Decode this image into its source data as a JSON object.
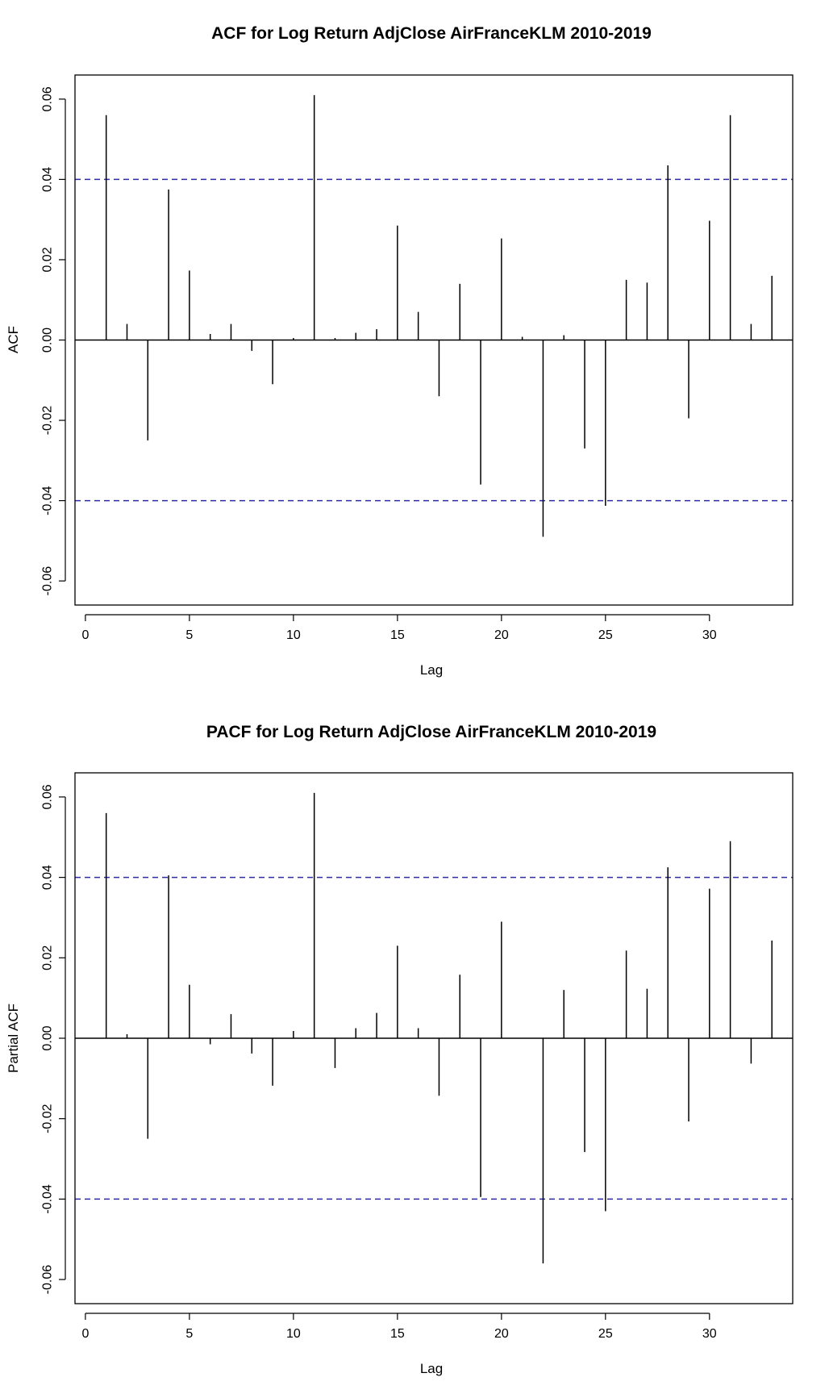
{
  "chart_data": [
    {
      "type": "bar",
      "title": "ACF for Log Return AdjClose AirFranceKLM 2010-2019",
      "xlabel": "Lag",
      "ylabel": "ACF",
      "xlim": [
        -0.5,
        34
      ],
      "ylim": [
        -0.066,
        0.066
      ],
      "xticks": [
        0,
        5,
        10,
        15,
        20,
        25,
        30
      ],
      "yticks": [
        -0.06,
        -0.04,
        -0.02,
        0.0,
        0.02,
        0.04,
        0.06
      ],
      "ytick_labels": [
        "-0.06",
        "-0.04",
        "-0.02",
        "0.00",
        "0.02",
        "0.04",
        "0.06"
      ],
      "confidence_bounds": [
        0.04,
        -0.04
      ],
      "lags": [
        1,
        2,
        3,
        4,
        5,
        6,
        7,
        8,
        9,
        10,
        11,
        12,
        13,
        14,
        15,
        16,
        17,
        18,
        19,
        20,
        21,
        22,
        23,
        24,
        25,
        26,
        27,
        28,
        29,
        30,
        31,
        32,
        33
      ],
      "values": [
        0.056,
        0.004,
        -0.025,
        0.0375,
        0.0173,
        0.0015,
        0.004,
        -0.0027,
        -0.011,
        0.0005,
        0.061,
        0.0005,
        0.0018,
        0.0027,
        0.0285,
        0.007,
        -0.014,
        0.014,
        -0.036,
        0.0253,
        0.0008,
        -0.049,
        0.0012,
        -0.027,
        -0.0413,
        0.015,
        0.0143,
        0.0435,
        -0.0195,
        0.0297,
        0.056,
        0.004,
        0.016
      ]
    },
    {
      "type": "bar",
      "title": "PACF for Log Return AdjClose AirFranceKLM 2010-2019",
      "xlabel": "Lag",
      "ylabel": "Partial ACF",
      "xlim": [
        -0.5,
        34
      ],
      "ylim": [
        -0.066,
        0.066
      ],
      "xticks": [
        0,
        5,
        10,
        15,
        20,
        25,
        30
      ],
      "yticks": [
        -0.06,
        -0.04,
        -0.02,
        0.0,
        0.02,
        0.04,
        0.06
      ],
      "ytick_labels": [
        "-0.06",
        "-0.04",
        "-0.02",
        "0.00",
        "0.02",
        "0.04",
        "0.06"
      ],
      "confidence_bounds": [
        0.04,
        -0.04
      ],
      "lags": [
        1,
        2,
        3,
        4,
        5,
        6,
        7,
        8,
        9,
        10,
        11,
        12,
        13,
        14,
        15,
        16,
        17,
        18,
        19,
        20,
        21,
        22,
        23,
        24,
        25,
        26,
        27,
        28,
        29,
        30,
        31,
        32,
        33
      ],
      "values": [
        0.056,
        0.001,
        -0.025,
        0.0405,
        0.0133,
        -0.0015,
        0.006,
        -0.0038,
        -0.0118,
        0.0018,
        0.061,
        -0.0074,
        0.0025,
        0.0063,
        0.023,
        0.0025,
        -0.0143,
        0.0158,
        -0.0395,
        0.029,
        0.0,
        -0.056,
        0.012,
        -0.0283,
        -0.043,
        0.0218,
        0.0123,
        0.0425,
        -0.0207,
        0.0372,
        0.049,
        -0.0063,
        0.0243
      ]
    }
  ]
}
